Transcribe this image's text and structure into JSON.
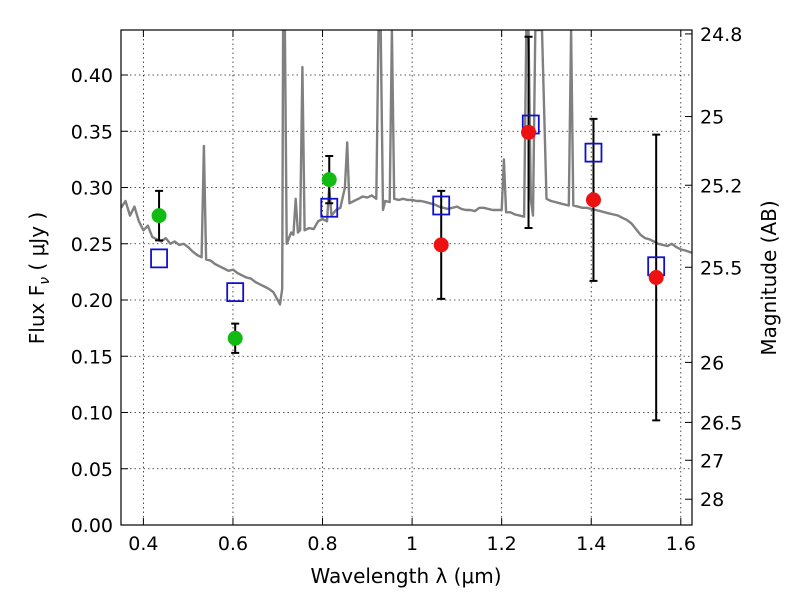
{
  "chart_data": {
    "type": "scatter",
    "xlabel": "Wavelength  λ (μm)",
    "ylabel": "Flux  F",
    "ylabel_sub": "ν",
    "ylabel_unit": "  ( μJy )",
    "y2label": "Magnitude (AB)",
    "xlim": [
      0.35,
      1.625
    ],
    "ylim": [
      0.0,
      0.44
    ],
    "grid": true,
    "x_ticks": [
      {
        "value": 0.4,
        "label": "0.4"
      },
      {
        "value": 0.6,
        "label": "0.6"
      },
      {
        "value": 0.8,
        "label": "0.8"
      },
      {
        "value": 1.0,
        "label": "1"
      },
      {
        "value": 1.2,
        "label": "1.2"
      },
      {
        "value": 1.4,
        "label": "1.4"
      },
      {
        "value": 1.6,
        "label": "1.6"
      }
    ],
    "y_ticks": [
      {
        "value": 0.0,
        "label": "0.00"
      },
      {
        "value": 0.05,
        "label": "0.05"
      },
      {
        "value": 0.1,
        "label": "0.10"
      },
      {
        "value": 0.15,
        "label": "0.15"
      },
      {
        "value": 0.2,
        "label": "0.20"
      },
      {
        "value": 0.25,
        "label": "0.25"
      },
      {
        "value": 0.3,
        "label": "0.30"
      },
      {
        "value": 0.35,
        "label": "0.35"
      },
      {
        "value": 0.4,
        "label": "0.40"
      }
    ],
    "y2_ticks": [
      {
        "value": 24.8,
        "label": "24.8"
      },
      {
        "value": 25.0,
        "label": "25"
      },
      {
        "value": 25.2,
        "label": "25.2"
      },
      {
        "value": 25.5,
        "label": "25.5"
      },
      {
        "value": 26.0,
        "label": "26"
      },
      {
        "value": 26.5,
        "label": "26.5"
      },
      {
        "value": 27.0,
        "label": "27"
      },
      {
        "value": 28.0,
        "label": "28"
      }
    ],
    "colors": {
      "model": "#808080",
      "green": "#11bb11",
      "red": "#ee1111",
      "square": "#1111cc",
      "errorbar": "#000000"
    },
    "model_spectrum": [
      [
        0.35,
        0.282
      ],
      [
        0.36,
        0.288
      ],
      [
        0.37,
        0.275
      ],
      [
        0.38,
        0.283
      ],
      [
        0.39,
        0.27
      ],
      [
        0.4,
        0.262
      ],
      [
        0.41,
        0.266
      ],
      [
        0.42,
        0.256
      ],
      [
        0.43,
        0.254
      ],
      [
        0.44,
        0.252
      ],
      [
        0.45,
        0.255
      ],
      [
        0.46,
        0.25
      ],
      [
        0.47,
        0.252
      ],
      [
        0.48,
        0.249
      ],
      [
        0.49,
        0.25
      ],
      [
        0.5,
        0.247
      ],
      [
        0.51,
        0.243
      ],
      [
        0.52,
        0.24
      ],
      [
        0.53,
        0.238
      ],
      [
        0.535,
        0.337
      ],
      [
        0.54,
        0.236
      ],
      [
        0.55,
        0.235
      ],
      [
        0.56,
        0.232
      ],
      [
        0.57,
        0.23
      ],
      [
        0.58,
        0.228
      ],
      [
        0.59,
        0.226
      ],
      [
        0.6,
        0.227
      ],
      [
        0.61,
        0.224
      ],
      [
        0.62,
        0.222
      ],
      [
        0.63,
        0.22
      ],
      [
        0.64,
        0.219
      ],
      [
        0.65,
        0.216
      ],
      [
        0.66,
        0.214
      ],
      [
        0.67,
        0.212
      ],
      [
        0.68,
        0.21
      ],
      [
        0.69,
        0.207
      ],
      [
        0.7,
        0.2
      ],
      [
        0.705,
        0.196
      ],
      [
        0.71,
        0.21
      ],
      [
        0.712,
        0.44
      ],
      [
        0.716,
        0.44
      ],
      [
        0.72,
        0.25
      ],
      [
        0.73,
        0.26
      ],
      [
        0.735,
        0.258
      ],
      [
        0.74,
        0.29
      ],
      [
        0.745,
        0.26
      ],
      [
        0.75,
        0.262
      ],
      [
        0.755,
        0.407
      ],
      [
        0.76,
        0.262
      ],
      [
        0.77,
        0.264
      ],
      [
        0.78,
        0.263
      ],
      [
        0.79,
        0.27
      ],
      [
        0.8,
        0.272
      ],
      [
        0.81,
        0.27
      ],
      [
        0.815,
        0.3
      ],
      [
        0.82,
        0.275
      ],
      [
        0.83,
        0.28
      ],
      [
        0.84,
        0.282
      ],
      [
        0.85,
        0.3
      ],
      [
        0.855,
        0.34
      ],
      [
        0.86,
        0.286
      ],
      [
        0.87,
        0.288
      ],
      [
        0.88,
        0.29
      ],
      [
        0.89,
        0.292
      ],
      [
        0.9,
        0.291
      ],
      [
        0.91,
        0.293
      ],
      [
        0.92,
        0.29
      ],
      [
        0.925,
        0.44
      ],
      [
        0.93,
        0.44
      ],
      [
        0.935,
        0.28
      ],
      [
        0.94,
        0.288
      ],
      [
        0.95,
        0.287
      ],
      [
        0.955,
        0.44
      ],
      [
        0.96,
        0.29
      ],
      [
        0.97,
        0.289
      ],
      [
        0.98,
        0.29
      ],
      [
        0.99,
        0.289
      ],
      [
        1.0,
        0.289
      ],
      [
        1.01,
        0.288
      ],
      [
        1.02,
        0.288
      ],
      [
        1.03,
        0.287
      ],
      [
        1.04,
        0.286
      ],
      [
        1.05,
        0.285
      ],
      [
        1.06,
        0.283
      ],
      [
        1.07,
        0.282
      ],
      [
        1.08,
        0.281
      ],
      [
        1.09,
        0.282
      ],
      [
        1.1,
        0.283
      ],
      [
        1.11,
        0.281
      ],
      [
        1.12,
        0.28
      ],
      [
        1.13,
        0.28
      ],
      [
        1.14,
        0.279
      ],
      [
        1.15,
        0.282
      ],
      [
        1.16,
        0.282
      ],
      [
        1.17,
        0.281
      ],
      [
        1.18,
        0.28
      ],
      [
        1.19,
        0.28
      ],
      [
        1.2,
        0.28
      ],
      [
        1.205,
        0.325
      ],
      [
        1.21,
        0.278
      ],
      [
        1.22,
        0.278
      ],
      [
        1.23,
        0.276
      ],
      [
        1.24,
        0.275
      ],
      [
        1.25,
        0.274
      ],
      [
        1.255,
        0.44
      ],
      [
        1.26,
        0.44
      ],
      [
        1.265,
        0.29
      ],
      [
        1.27,
        0.275
      ],
      [
        1.275,
        0.44
      ],
      [
        1.28,
        0.44
      ],
      [
        1.29,
        0.44
      ],
      [
        1.3,
        0.29
      ],
      [
        1.31,
        0.288
      ],
      [
        1.32,
        0.287
      ],
      [
        1.33,
        0.286
      ],
      [
        1.34,
        0.285
      ],
      [
        1.35,
        0.284
      ],
      [
        1.355,
        0.44
      ],
      [
        1.36,
        0.284
      ],
      [
        1.37,
        0.283
      ],
      [
        1.38,
        0.282
      ],
      [
        1.39,
        0.282
      ],
      [
        1.4,
        0.281
      ],
      [
        1.41,
        0.28
      ],
      [
        1.42,
        0.279
      ],
      [
        1.43,
        0.278
      ],
      [
        1.44,
        0.277
      ],
      [
        1.45,
        0.276
      ],
      [
        1.46,
        0.275
      ],
      [
        1.47,
        0.273
      ],
      [
        1.48,
        0.271
      ],
      [
        1.49,
        0.268
      ],
      [
        1.5,
        0.263
      ],
      [
        1.51,
        0.258
      ],
      [
        1.52,
        0.255
      ],
      [
        1.53,
        0.254
      ],
      [
        1.54,
        0.252
      ],
      [
        1.55,
        0.25
      ],
      [
        1.56,
        0.249
      ],
      [
        1.57,
        0.248
      ],
      [
        1.58,
        0.25
      ],
      [
        1.59,
        0.247
      ],
      [
        1.6,
        0.245
      ],
      [
        1.61,
        0.244
      ],
      [
        1.625,
        0.242
      ]
    ],
    "points": [
      {
        "x": 0.435,
        "y": 0.275,
        "err": 0.022,
        "color": "green"
      },
      {
        "x": 0.605,
        "y": 0.166,
        "err": 0.013,
        "color": "green"
      },
      {
        "x": 0.815,
        "y": 0.307,
        "err": 0.021,
        "color": "green"
      },
      {
        "x": 1.065,
        "y": 0.249,
        "err": 0.048,
        "color": "red"
      },
      {
        "x": 1.26,
        "y": 0.349,
        "err": 0.085,
        "color": "red"
      },
      {
        "x": 1.405,
        "y": 0.289,
        "err": 0.072,
        "color": "red"
      },
      {
        "x": 1.545,
        "y": 0.22,
        "err": 0.127,
        "color": "red"
      }
    ],
    "model_photometry": [
      {
        "x": 0.435,
        "y": 0.237
      },
      {
        "x": 0.605,
        "y": 0.207
      },
      {
        "x": 0.815,
        "y": 0.282
      },
      {
        "x": 1.065,
        "y": 0.284
      },
      {
        "x": 1.265,
        "y": 0.356
      },
      {
        "x": 1.405,
        "y": 0.331
      },
      {
        "x": 1.545,
        "y": 0.23
      }
    ]
  }
}
